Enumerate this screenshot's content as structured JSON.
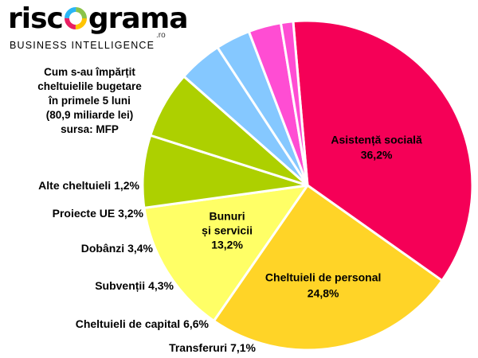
{
  "brand": {
    "name_left": "risc",
    "name_right": "grama",
    "suffix": ".ro",
    "tagline": "BUSINESS INTELLIGENCE"
  },
  "subtitle_lines": [
    "Cum s-au împărțit",
    "cheltuielile bugetare",
    "în primele 5 luni",
    "(80,9 miliarde lei)",
    "sursa: MFP"
  ],
  "chart_data": {
    "type": "pie",
    "start_angle_deg": 355,
    "direction": "clockwise",
    "slices": [
      {
        "name": "Asistență socială",
        "value": 36.2,
        "label": "36,2%",
        "color": "#F50057"
      },
      {
        "name": "Cheltuieli de personal",
        "value": 24.8,
        "label": "24,8%",
        "color": "#FFD427"
      },
      {
        "name": "Bunuri și servicii",
        "value": 13.2,
        "label": "13,2%",
        "color": "#FFFF66"
      },
      {
        "name": "Transferuri",
        "value": 7.1,
        "label": "7,1%",
        "color": "#ADD000"
      },
      {
        "name": "Cheltuieli de capital",
        "value": 6.6,
        "label": "6,6%",
        "color": "#ADD000"
      },
      {
        "name": "Subvenții",
        "value": 4.3,
        "label": "4,3%",
        "color": "#85C8FF"
      },
      {
        "name": "Dobânzi",
        "value": 3.4,
        "label": "3,4%",
        "color": "#85C8FF"
      },
      {
        "name": "Proiecte UE",
        "value": 3.2,
        "label": "3,2%",
        "color": "#FF4DD3"
      },
      {
        "name": "Alte cheltuieli",
        "value": 1.2,
        "label": "1,2%",
        "color": "#FF4DD3"
      }
    ]
  }
}
